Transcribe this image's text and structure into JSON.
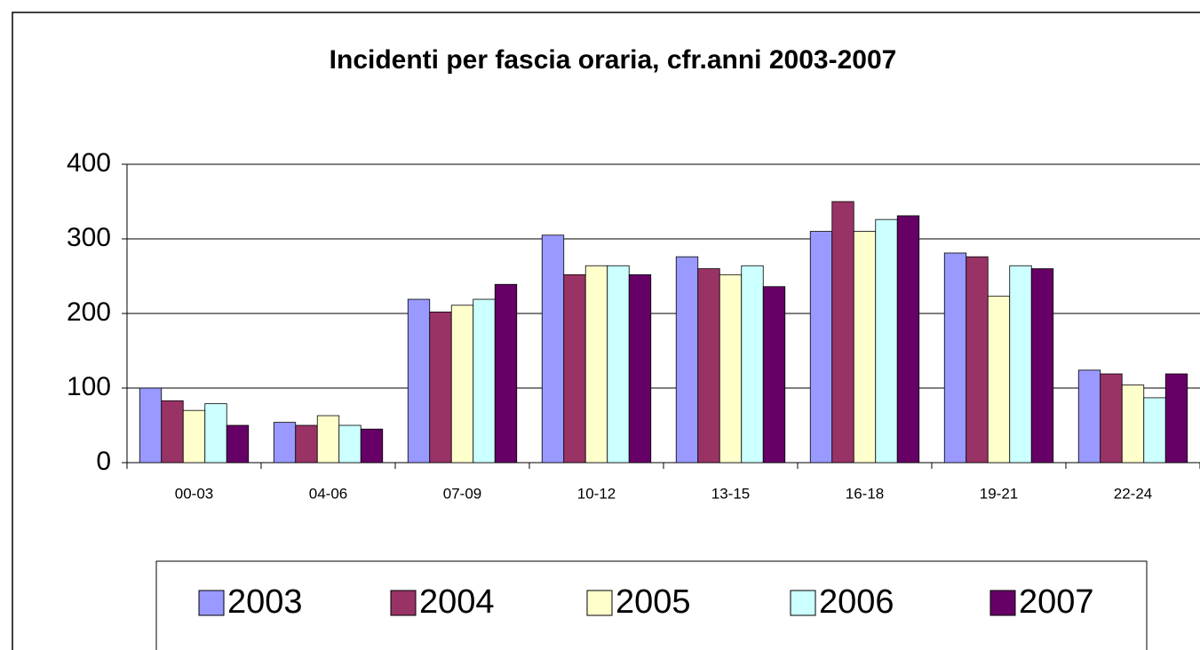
{
  "chart_data": {
    "type": "bar",
    "title": "Incidenti per fascia oraria, cfr.anni 2003-2007",
    "categories": [
      "00-03",
      "04-06",
      "07-09",
      "10-12",
      "13-15",
      "16-18",
      "19-21",
      "22-24"
    ],
    "series": [
      {
        "name": "2003",
        "color": "#9999ff",
        "values": [
          100,
          54,
          219,
          305,
          276,
          310,
          281,
          124
        ]
      },
      {
        "name": "2004",
        "color": "#993366",
        "values": [
          83,
          50,
          202,
          252,
          260,
          350,
          276,
          119
        ]
      },
      {
        "name": "2005",
        "color": "#ffffcc",
        "values": [
          70,
          63,
          211,
          264,
          252,
          310,
          223,
          104
        ]
      },
      {
        "name": "2006",
        "color": "#ccffff",
        "values": [
          79,
          50,
          219,
          264,
          264,
          326,
          264,
          87
        ]
      },
      {
        "name": "2007",
        "color": "#660066",
        "values": [
          50,
          45,
          239,
          252,
          236,
          331,
          260,
          119
        ]
      }
    ],
    "ylim": [
      0,
      400
    ],
    "yticks": [
      0,
      100,
      200,
      300,
      400
    ],
    "grid": true,
    "legend": "bottom"
  }
}
